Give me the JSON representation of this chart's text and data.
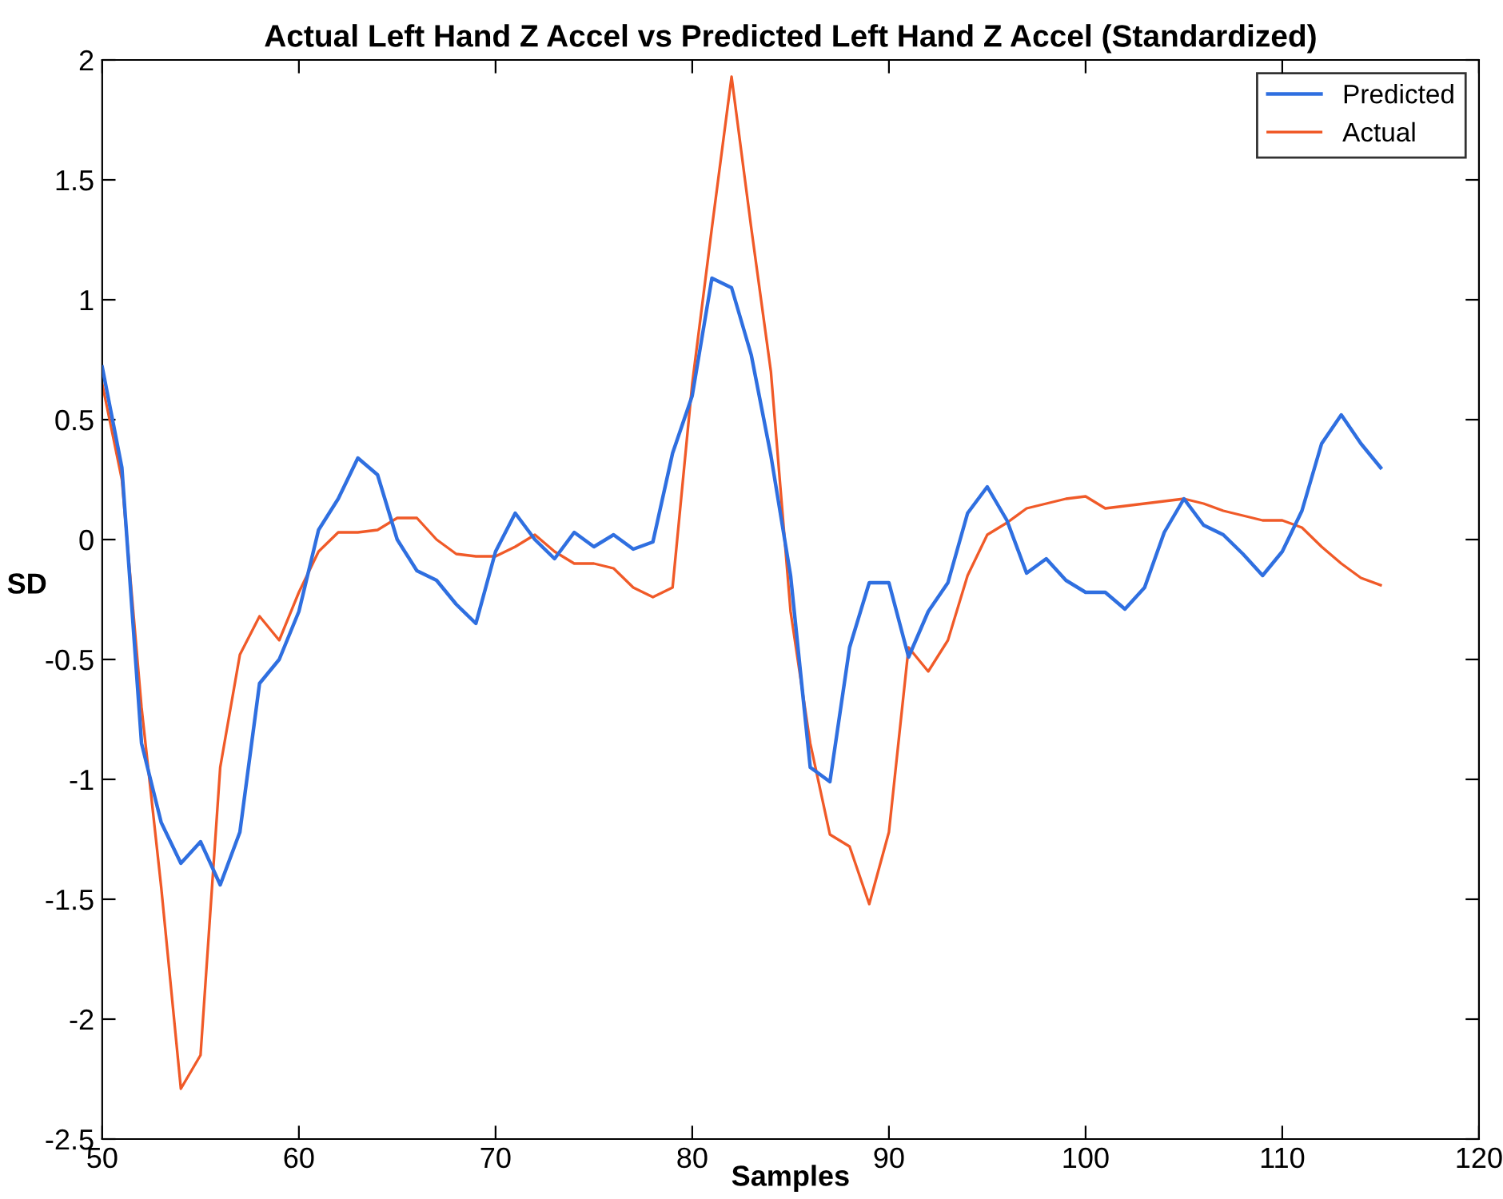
{
  "chart_data": {
    "type": "line",
    "title": "Actual Left Hand Z Accel vs Predicted Left Hand Z Accel (Standardized)",
    "xlabel": "Samples",
    "ylabel": "SD",
    "x": [
      50,
      51,
      52,
      53,
      54,
      55,
      56,
      57,
      58,
      59,
      60,
      61,
      62,
      63,
      64,
      65,
      66,
      67,
      68,
      69,
      70,
      71,
      72,
      73,
      74,
      75,
      76,
      77,
      78,
      79,
      80,
      81,
      82,
      83,
      84,
      85,
      86,
      87,
      88,
      89,
      90,
      91,
      92,
      93,
      94,
      95,
      96,
      97,
      98,
      99,
      100,
      101,
      102,
      103,
      104,
      105,
      106,
      107,
      108,
      109,
      110,
      111,
      112,
      113,
      114,
      115
    ],
    "series": [
      {
        "name": "Predicted",
        "color": "#2f6fe0",
        "values": [
          0.72,
          0.3,
          -0.85,
          -1.18,
          -1.35,
          -1.26,
          -1.44,
          -1.22,
          -0.6,
          -0.5,
          -0.3,
          0.04,
          0.17,
          0.34,
          0.27,
          0.0,
          -0.13,
          -0.17,
          -0.27,
          -0.35,
          -0.05,
          0.11,
          0.0,
          -0.08,
          0.03,
          -0.03,
          0.02,
          -0.04,
          -0.01,
          0.36,
          0.6,
          1.09,
          1.05,
          0.77,
          0.35,
          -0.15,
          -0.95,
          -1.01,
          -0.45,
          -0.18,
          -0.18,
          -0.49,
          -0.3,
          -0.18,
          0.11,
          0.22,
          0.08,
          -0.14,
          -0.08,
          -0.17,
          -0.22,
          -0.22,
          -0.29,
          -0.2,
          0.03,
          0.17,
          0.06,
          0.02,
          -0.06,
          -0.15,
          -0.05,
          0.12,
          0.4,
          0.52,
          0.4,
          0.3
        ]
      },
      {
        "name": "Actual",
        "color": "#f05a28",
        "values": [
          0.65,
          0.25,
          -0.7,
          -1.45,
          -2.29,
          -2.15,
          -0.95,
          -0.48,
          -0.32,
          -0.42,
          -0.22,
          -0.05,
          0.03,
          0.03,
          0.04,
          0.09,
          0.09,
          0.0,
          -0.06,
          -0.07,
          -0.07,
          -0.03,
          0.02,
          -0.05,
          -0.1,
          -0.1,
          -0.12,
          -0.2,
          -0.24,
          -0.2,
          0.65,
          1.3,
          1.93,
          1.3,
          0.7,
          -0.3,
          -0.85,
          -1.23,
          -1.28,
          -1.52,
          -1.22,
          -0.45,
          -0.55,
          -0.42,
          -0.15,
          0.02,
          0.07,
          0.13,
          0.15,
          0.17,
          0.18,
          0.13,
          0.14,
          0.15,
          0.16,
          0.17,
          0.15,
          0.12,
          0.1,
          0.08,
          0.08,
          0.05,
          -0.03,
          -0.1,
          -0.16,
          -0.19
        ]
      }
    ],
    "xlim": [
      50,
      120
    ],
    "xticks": [
      50,
      60,
      70,
      80,
      90,
      100,
      110,
      120
    ],
    "ylim": [
      -2.5,
      2
    ],
    "yticks": [
      -2.5,
      -2,
      -1.5,
      -1,
      -0.5,
      0,
      0.5,
      1,
      1.5,
      2
    ],
    "grid": false,
    "legend": "top right",
    "marker": "none",
    "line_style": "solid"
  }
}
